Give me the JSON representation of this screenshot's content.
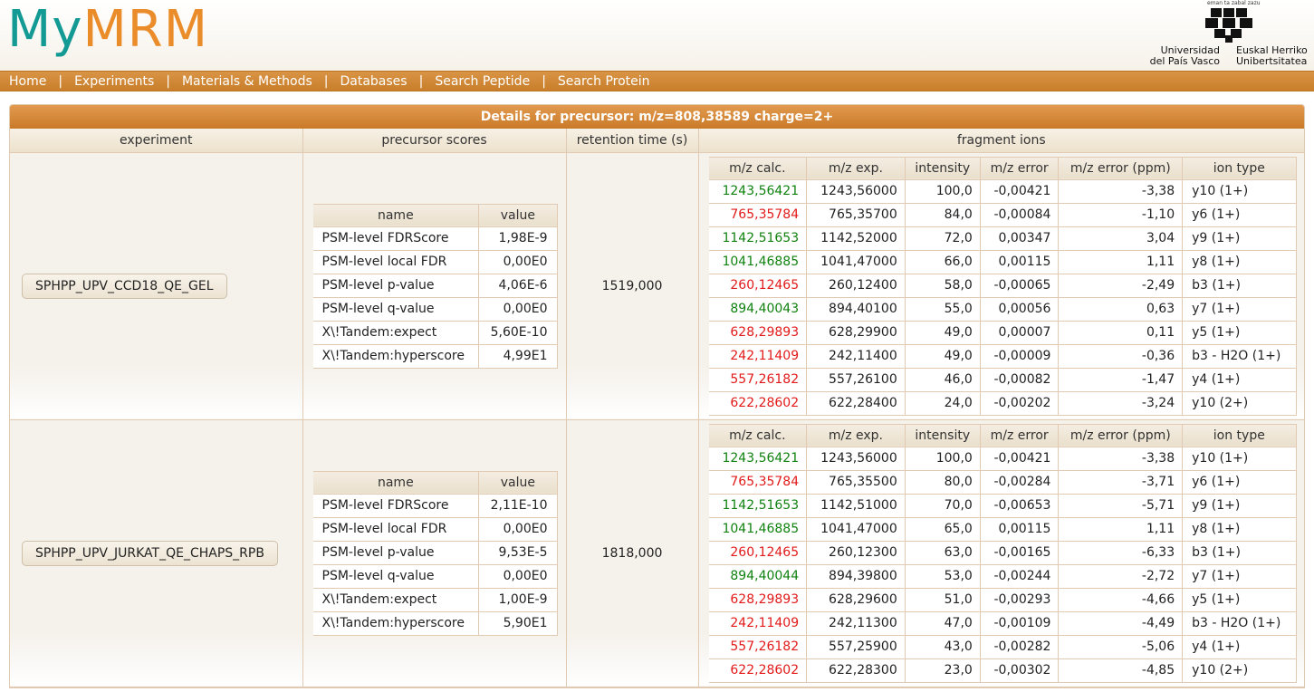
{
  "logo": {
    "my": "My",
    "mrm": "MRM"
  },
  "university": {
    "motto": "eman ta zabal zazu",
    "name_es_1": "Universidad",
    "name_es_2": "del País Vasco",
    "name_eu_1": "Euskal Herriko",
    "name_eu_2": "Unibertsitatea"
  },
  "nav": {
    "home": "Home",
    "experiments": "Experiments",
    "materials": "Materials & Methods",
    "databases": "Databases",
    "search_peptide": "Search Peptide",
    "search_protein": "Search Protein",
    "separator": "|"
  },
  "details": {
    "title": "Details for precursor: m/z=808,38589 charge=2+",
    "headers": {
      "experiment": "experiment",
      "precursor_scores": "precursor scores",
      "retention_time": "retention time (s)",
      "fragment_ions": "fragment ions"
    },
    "score_headers": {
      "name": "name",
      "value": "value"
    },
    "frag_headers": {
      "mz_calc": "m/z calc.",
      "mz_exp": "m/z exp.",
      "intensity": "intensity",
      "mz_error": "m/z error",
      "mz_error_ppm": "m/z error (ppm)",
      "ion_type": "ion type"
    },
    "rows": [
      {
        "experiment": "SPHPP_UPV_CCD18_QE_GEL",
        "retention_time": "1519,000",
        "scores": [
          {
            "name": "PSM-level FDRScore",
            "value": "1,98E-9"
          },
          {
            "name": "PSM-level local FDR",
            "value": "0,00E0"
          },
          {
            "name": "PSM-level p-value",
            "value": "4,06E-6"
          },
          {
            "name": "PSM-level q-value",
            "value": "0,00E0"
          },
          {
            "name": "X\\!Tandem:expect",
            "value": "5,60E-10"
          },
          {
            "name": "X\\!Tandem:hyperscore",
            "value": "4,99E1"
          }
        ],
        "fragments": [
          {
            "mz_calc": "1243,56421",
            "color": "green",
            "mz_exp": "1243,56000",
            "intensity": "100,0",
            "mz_error": "-0,00421",
            "ppm": "-3,38",
            "ion": "y10 (1+)"
          },
          {
            "mz_calc": "765,35784",
            "color": "red",
            "mz_exp": "765,35700",
            "intensity": "84,0",
            "mz_error": "-0,00084",
            "ppm": "-1,10",
            "ion": "y6 (1+)"
          },
          {
            "mz_calc": "1142,51653",
            "color": "green",
            "mz_exp": "1142,52000",
            "intensity": "72,0",
            "mz_error": "0,00347",
            "ppm": "3,04",
            "ion": "y9 (1+)"
          },
          {
            "mz_calc": "1041,46885",
            "color": "green",
            "mz_exp": "1041,47000",
            "intensity": "66,0",
            "mz_error": "0,00115",
            "ppm": "1,11",
            "ion": "y8 (1+)"
          },
          {
            "mz_calc": "260,12465",
            "color": "red",
            "mz_exp": "260,12400",
            "intensity": "58,0",
            "mz_error": "-0,00065",
            "ppm": "-2,49",
            "ion": "b3 (1+)"
          },
          {
            "mz_calc": "894,40043",
            "color": "green",
            "mz_exp": "894,40100",
            "intensity": "55,0",
            "mz_error": "0,00056",
            "ppm": "0,63",
            "ion": "y7 (1+)"
          },
          {
            "mz_calc": "628,29893",
            "color": "red",
            "mz_exp": "628,29900",
            "intensity": "49,0",
            "mz_error": "0,00007",
            "ppm": "0,11",
            "ion": "y5 (1+)"
          },
          {
            "mz_calc": "242,11409",
            "color": "red",
            "mz_exp": "242,11400",
            "intensity": "49,0",
            "mz_error": "-0,00009",
            "ppm": "-0,36",
            "ion": "b3 - H2O (1+)"
          },
          {
            "mz_calc": "557,26182",
            "color": "red",
            "mz_exp": "557,26100",
            "intensity": "46,0",
            "mz_error": "-0,00082",
            "ppm": "-1,47",
            "ion": "y4 (1+)"
          },
          {
            "mz_calc": "622,28602",
            "color": "red",
            "mz_exp": "622,28400",
            "intensity": "24,0",
            "mz_error": "-0,00202",
            "ppm": "-3,24",
            "ion": "y10 (2+)"
          }
        ]
      },
      {
        "experiment": "SPHPP_UPV_JURKAT_QE_CHAPS_RPB",
        "retention_time": "1818,000",
        "scores": [
          {
            "name": "PSM-level FDRScore",
            "value": "2,11E-10"
          },
          {
            "name": "PSM-level local FDR",
            "value": "0,00E0"
          },
          {
            "name": "PSM-level p-value",
            "value": "9,53E-5"
          },
          {
            "name": "PSM-level q-value",
            "value": "0,00E0"
          },
          {
            "name": "X\\!Tandem:expect",
            "value": "1,00E-9"
          },
          {
            "name": "X\\!Tandem:hyperscore",
            "value": "5,90E1"
          }
        ],
        "fragments": [
          {
            "mz_calc": "1243,56421",
            "color": "green",
            "mz_exp": "1243,56000",
            "intensity": "100,0",
            "mz_error": "-0,00421",
            "ppm": "-3,38",
            "ion": "y10 (1+)"
          },
          {
            "mz_calc": "765,35784",
            "color": "red",
            "mz_exp": "765,35500",
            "intensity": "80,0",
            "mz_error": "-0,00284",
            "ppm": "-3,71",
            "ion": "y6 (1+)"
          },
          {
            "mz_calc": "1142,51653",
            "color": "green",
            "mz_exp": "1142,51000",
            "intensity": "70,0",
            "mz_error": "-0,00653",
            "ppm": "-5,71",
            "ion": "y9 (1+)"
          },
          {
            "mz_calc": "1041,46885",
            "color": "green",
            "mz_exp": "1041,47000",
            "intensity": "65,0",
            "mz_error": "0,00115",
            "ppm": "1,11",
            "ion": "y8 (1+)"
          },
          {
            "mz_calc": "260,12465",
            "color": "red",
            "mz_exp": "260,12300",
            "intensity": "63,0",
            "mz_error": "-0,00165",
            "ppm": "-6,33",
            "ion": "b3 (1+)"
          },
          {
            "mz_calc": "894,40044",
            "color": "green",
            "mz_exp": "894,39800",
            "intensity": "53,0",
            "mz_error": "-0,00244",
            "ppm": "-2,72",
            "ion": "y7 (1+)"
          },
          {
            "mz_calc": "628,29893",
            "color": "red",
            "mz_exp": "628,29600",
            "intensity": "51,0",
            "mz_error": "-0,00293",
            "ppm": "-4,66",
            "ion": "y5 (1+)"
          },
          {
            "mz_calc": "242,11409",
            "color": "red",
            "mz_exp": "242,11300",
            "intensity": "47,0",
            "mz_error": "-0,00109",
            "ppm": "-4,49",
            "ion": "b3 - H2O (1+)"
          },
          {
            "mz_calc": "557,26182",
            "color": "red",
            "mz_exp": "557,25900",
            "intensity": "43,0",
            "mz_error": "-0,00282",
            "ppm": "-5,06",
            "ion": "y4 (1+)"
          },
          {
            "mz_calc": "622,28602",
            "color": "red",
            "mz_exp": "622,28300",
            "intensity": "23,0",
            "mz_error": "-0,00302",
            "ppm": "-4,85",
            "ion": "y10 (2+)"
          }
        ]
      }
    ]
  }
}
